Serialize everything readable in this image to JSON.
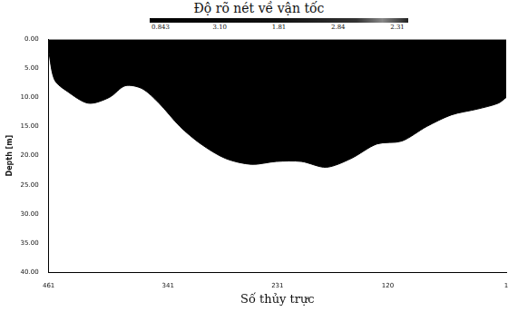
{
  "chart_data": {
    "type": "area",
    "title": "Độ rõ nét về vận tốc",
    "x_label": "Số thủy trực",
    "y_label": "Depth [m]",
    "colorbar": {
      "labels": [
        "0.843",
        "3.10",
        "1.81",
        "2.84",
        "2.31"
      ]
    },
    "x": [
      461,
      455,
      442,
      421,
      400,
      384,
      367,
      350,
      329,
      308,
      283,
      257,
      232,
      207,
      182,
      157,
      131,
      106,
      81,
      56,
      30,
      9,
      1
    ],
    "series": [
      {
        "name": "Depth",
        "color": "#000000",
        "values": [
          2,
          7,
          9,
          11,
          10,
          8,
          8.5,
          11,
          15,
          18,
          20.5,
          21.5,
          21,
          21,
          22,
          20.5,
          18,
          17.5,
          15,
          13,
          12,
          11,
          10
        ]
      }
    ],
    "xlim": [
      461,
      1
    ],
    "xticks": [
      461,
      341,
      231,
      120,
      1
    ],
    "ylim": [
      0,
      40
    ],
    "yticks": [
      {
        "value": 0,
        "label": "0.00"
      },
      {
        "value": 5,
        "label": "5.00"
      },
      {
        "value": 10,
        "label": "10.00"
      },
      {
        "value": 15,
        "label": "15.00"
      },
      {
        "value": 20,
        "label": "20.00"
      },
      {
        "value": 25,
        "label": "25.00"
      },
      {
        "value": 30,
        "label": "30.00"
      },
      {
        "value": 35,
        "label": "35.00"
      },
      {
        "value": 40,
        "label": "40.00"
      }
    ],
    "grid": false
  }
}
